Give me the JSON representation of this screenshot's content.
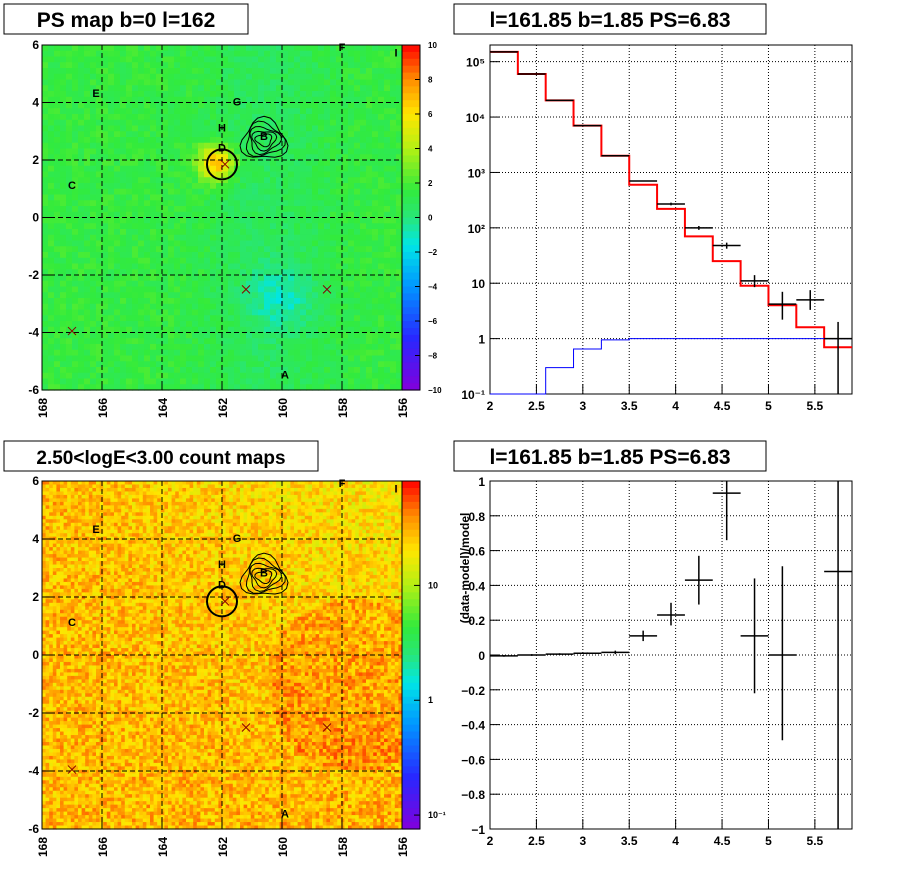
{
  "chart_data": [
    {
      "type": "heatmap",
      "title": "PS map b=0 l=162",
      "x_ticks": [
        "168",
        "166",
        "164",
        "162",
        "160",
        "158",
        "156"
      ],
      "y_ticks": [
        "6",
        "4",
        "2",
        "0",
        "-2",
        "-4",
        "-6"
      ],
      "xlim": [
        168,
        156
      ],
      "ylim": [
        -6,
        6
      ],
      "colorbar": {
        "range": [
          -10,
          10
        ],
        "ticks": [
          "10",
          "8",
          "6",
          "4",
          "2",
          "0",
          "−2",
          "−4",
          "−6",
          "−8",
          "−10"
        ]
      },
      "source_labels": [
        {
          "text": "E",
          "l": 166.2,
          "b": 4.2
        },
        {
          "text": "F",
          "l": 158.0,
          "b": 5.8
        },
        {
          "text": "I",
          "l": 156.2,
          "b": 5.6
        },
        {
          "text": "G",
          "l": 161.5,
          "b": 3.9
        },
        {
          "text": "H",
          "l": 162.0,
          "b": 3.0
        },
        {
          "text": "B",
          "l": 160.6,
          "b": 2.7
        },
        {
          "text": "D",
          "l": 162.0,
          "b": 2.3
        },
        {
          "text": "C",
          "l": 167.0,
          "b": 1.0
        },
        {
          "text": "A",
          "l": 159.9,
          "b": -5.6
        }
      ],
      "x_markers": [
        {
          "l": 161.9,
          "b": 1.85
        },
        {
          "l": 161.2,
          "b": -2.5
        },
        {
          "l": 158.5,
          "b": -2.5
        },
        {
          "l": 167.0,
          "b": -3.95
        }
      ],
      "circle": {
        "l": 162.0,
        "b": 1.85,
        "r": 0.5
      },
      "color_scale": "rainbow"
    },
    {
      "type": "line",
      "title": "l=161.85 b=1.85 PS=6.83",
      "yscale": "log",
      "xlim": [
        2,
        5.9
      ],
      "ylim": [
        0.1,
        200000
      ],
      "x_ticks": [
        "2",
        "2.5",
        "3",
        "3.5",
        "4",
        "4.5",
        "5",
        "5.5"
      ],
      "y_ticks": [
        "10⁵",
        "10⁴",
        "10³",
        "10²",
        "10",
        "1",
        "10⁻¹"
      ],
      "series": [
        {
          "name": "",
          "style": "step",
          "color": "#ff0000",
          "bin_edges": [
            2.0,
            2.3,
            2.6,
            2.9,
            3.2,
            3.5,
            3.8,
            4.1,
            4.4,
            4.7,
            5.0,
            5.3,
            5.6,
            5.9
          ],
          "values": [
            150000,
            60000,
            20000,
            7000,
            2000,
            600,
            220,
            70,
            25,
            9,
            4,
            1.6,
            0.7
          ]
        },
        {
          "name": "",
          "style": "step",
          "color": "#0000ff",
          "bin_edges": [
            2.0,
            2.3,
            2.6,
            2.9,
            3.2,
            3.5,
            3.8,
            4.1,
            4.4,
            4.7,
            5.0,
            5.3,
            5.6,
            5.9
          ],
          "values": [
            0.01,
            0.01,
            0.3,
            0.65,
            0.95,
            1.0,
            1.0,
            1.0,
            1.0,
            1.0,
            1.0,
            1.0,
            1.0
          ]
        },
        {
          "name": "",
          "style": "errorbar",
          "color": "#000000",
          "x": [
            2.15,
            2.45,
            2.75,
            3.05,
            3.35,
            3.65,
            3.95,
            4.25,
            4.55,
            4.85,
            5.15,
            5.45,
            5.75
          ],
          "y": [
            150000,
            60000,
            20000,
            7000,
            2000,
            700,
            270,
            100,
            48,
            11,
            4.2,
            5,
            1
          ],
          "ylo": [
            149000,
            59500,
            19800,
            6900,
            1960,
            690,
            255,
            92,
            42,
            8.5,
            2.2,
            3.3,
            0.1
          ],
          "yhi": [
            151000,
            60500,
            20200,
            7100,
            2040,
            710,
            285,
            108,
            54,
            14,
            7,
            7.5,
            2
          ]
        }
      ]
    },
    {
      "type": "heatmap",
      "title": "2.50<logE<3.00 count maps",
      "x_ticks": [
        "168",
        "166",
        "164",
        "162",
        "160",
        "158",
        "156"
      ],
      "y_ticks": [
        "6",
        "4",
        "2",
        "0",
        "-2",
        "-4",
        "-6"
      ],
      "xlim": [
        168,
        156
      ],
      "ylim": [
        -6,
        6
      ],
      "colorbar": {
        "scale": "log",
        "ticks": [
          "10",
          "1",
          "10⁻¹"
        ]
      },
      "source_labels": [
        {
          "text": "E",
          "l": 166.2,
          "b": 4.2
        },
        {
          "text": "F",
          "l": 158.0,
          "b": 5.8
        },
        {
          "text": "I",
          "l": 156.2,
          "b": 5.6
        },
        {
          "text": "G",
          "l": 161.5,
          "b": 3.9
        },
        {
          "text": "H",
          "l": 162.0,
          "b": 3.0
        },
        {
          "text": "B",
          "l": 160.6,
          "b": 2.7
        },
        {
          "text": "D",
          "l": 162.0,
          "b": 2.3
        },
        {
          "text": "C",
          "l": 167.0,
          "b": 1.0
        },
        {
          "text": "A",
          "l": 159.9,
          "b": -5.6
        }
      ],
      "x_markers": [
        {
          "l": 161.9,
          "b": 1.85
        },
        {
          "l": 161.2,
          "b": -2.5
        },
        {
          "l": 158.5,
          "b": -2.5
        },
        {
          "l": 167.0,
          "b": -3.95
        }
      ],
      "circle": {
        "l": 162.0,
        "b": 1.85,
        "r": 0.5
      },
      "color_scale": "rainbow-log"
    },
    {
      "type": "scatter",
      "title": "l=161.85 b=1.85 PS=6.83",
      "ylabel": "(data-model)/model",
      "xlim": [
        2,
        5.9
      ],
      "ylim": [
        -1,
        1
      ],
      "x_ticks": [
        "2",
        "2.5",
        "3",
        "3.5",
        "4",
        "4.5",
        "5",
        "5.5"
      ],
      "y_ticks": [
        "1",
        "0.8",
        "0.6",
        "0.4",
        "0.2",
        "0",
        "−0.2",
        "−0.4",
        "−0.6",
        "−0.8",
        "−1"
      ],
      "series": [
        {
          "name": "",
          "x": [
            2.15,
            2.45,
            2.75,
            3.05,
            3.35,
            3.65,
            3.95,
            4.25,
            4.55,
            4.85,
            5.15,
            5.75
          ],
          "xerr": [
            0.15,
            0.15,
            0.15,
            0.15,
            0.15,
            0.15,
            0.15,
            0.15,
            0.15,
            0.15,
            0.15,
            0.15
          ],
          "y": [
            -0.005,
            0.0,
            0.005,
            0.01,
            0.015,
            0.11,
            0.23,
            0.43,
            0.93,
            0.11,
            0.0,
            0.48
          ],
          "ylo": [
            -0.01,
            -0.005,
            0.0,
            0.005,
            0.005,
            0.08,
            0.17,
            0.29,
            0.66,
            -0.22,
            -0.49,
            -1.0
          ],
          "yhi": [
            0.0,
            0.005,
            0.01,
            0.015,
            0.025,
            0.14,
            0.3,
            0.57,
            1.0,
            0.44,
            0.51,
            1.0
          ]
        }
      ]
    }
  ]
}
